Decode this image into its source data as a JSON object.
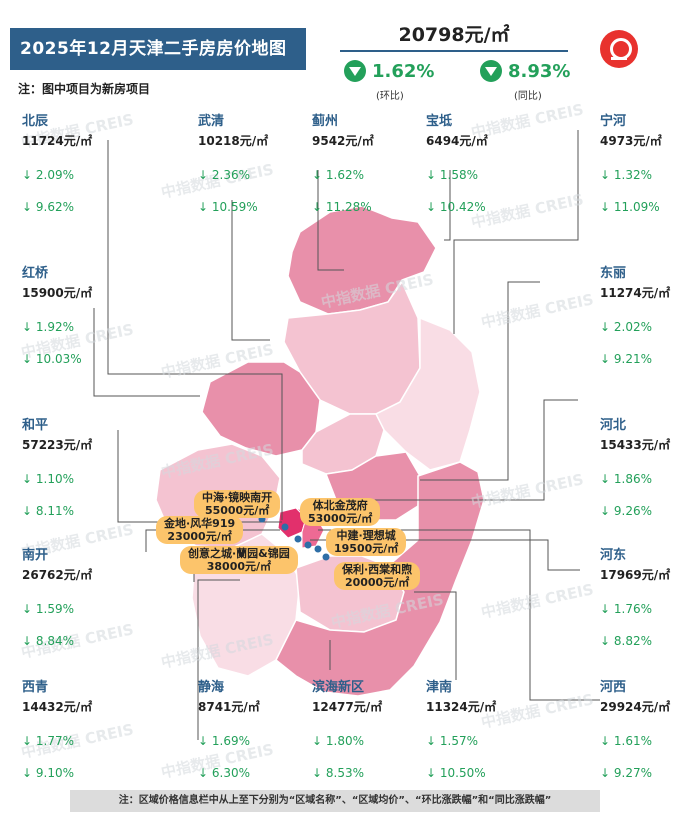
{
  "header": {
    "title": "2025年12月天津二手房房价地图",
    "note": "注：图中项目为新房项目",
    "avg_price": "20798元/㎡",
    "mom_change": "1.62%",
    "mom_label": "(环比)",
    "yoy_change": "8.93%",
    "yoy_label": "(同比)"
  },
  "districts": [
    {
      "name": "北辰",
      "price": "11724元/㎡",
      "mom": "↓ 2.09%",
      "yoy": "↓ 9.62%"
    },
    {
      "name": "武清",
      "price": "10218元/㎡",
      "mom": "↓ 2.36%",
      "yoy": "↓ 10.59%"
    },
    {
      "name": "蓟州",
      "price": "9542元/㎡",
      "mom": "↓ 1.62%",
      "yoy": "↓ 11.28%"
    },
    {
      "name": "宝坻",
      "price": "6494元/㎡",
      "mom": "↓ 1.58%",
      "yoy": "↓ 10.42%"
    },
    {
      "name": "宁河",
      "price": "4973元/㎡",
      "mom": "↓ 1.32%",
      "yoy": "↓ 11.09%"
    },
    {
      "name": "红桥",
      "price": "15900元/㎡",
      "mom": "↓ 1.92%",
      "yoy": "↓ 10.03%"
    },
    {
      "name": "东丽",
      "price": "11274元/㎡",
      "mom": "↓ 2.02%",
      "yoy": "↓ 9.21%"
    },
    {
      "name": "和平",
      "price": "57223元/㎡",
      "mom": "↓ 1.10%",
      "yoy": "↓ 8.11%"
    },
    {
      "name": "河北",
      "price": "15433元/㎡",
      "mom": "↓ 1.86%",
      "yoy": "↓ 9.26%"
    },
    {
      "name": "南开",
      "price": "26762元/㎡",
      "mom": "↓ 1.59%",
      "yoy": "↓ 8.84%"
    },
    {
      "name": "河东",
      "price": "17969元/㎡",
      "mom": "↓ 1.76%",
      "yoy": "↓ 8.82%"
    },
    {
      "name": "西青",
      "price": "14432元/㎡",
      "mom": "↓ 1.77%",
      "yoy": "↓ 9.10%"
    },
    {
      "name": "静海",
      "price": "8741元/㎡",
      "mom": "↓ 1.69%",
      "yoy": "↓ 6.30%"
    },
    {
      "name": "滨海新区",
      "price": "12477元/㎡",
      "mom": "↓ 1.80%",
      "yoy": "↓ 8.53%"
    },
    {
      "name": "津南",
      "price": "11324元/㎡",
      "mom": "↓ 1.57%",
      "yoy": "↓ 10.50%"
    },
    {
      "name": "河西",
      "price": "29924元/㎡",
      "mom": "↓ 1.61%",
      "yoy": "↓ 9.27%"
    }
  ],
  "projects": [
    {
      "name": "中海·镜映南开",
      "price": "55000元/㎡"
    },
    {
      "name": "体北金茂府",
      "price": "53000元/㎡"
    },
    {
      "name": "金地·风华919",
      "price": "23000元/㎡"
    },
    {
      "name": "中建·理想城",
      "price": "19500元/㎡"
    },
    {
      "name": "创意之城·蘭园&锦园",
      "price": "38000元/㎡"
    },
    {
      "name": "保利·西棠和煦",
      "price": "20000元/㎡"
    }
  ],
  "watermark": "中指数据 CREIS",
  "footer_note": "注：区域价格信息栏中从上至下分别为“区域名称”、“区域均价”、“环比涨跌幅”和“同比涨跌幅”",
  "colors": {
    "title_bg": "#2e5f8a",
    "district_name": "#2e5f8a",
    "decline_green": "#23a05a",
    "project_label": "#fcc46b",
    "logo_red": "#e8322e",
    "map_dark": "#e890aa",
    "map_mid": "#f2b6c6",
    "map_light": "#f9dde5",
    "core_red": "#e2306c"
  }
}
